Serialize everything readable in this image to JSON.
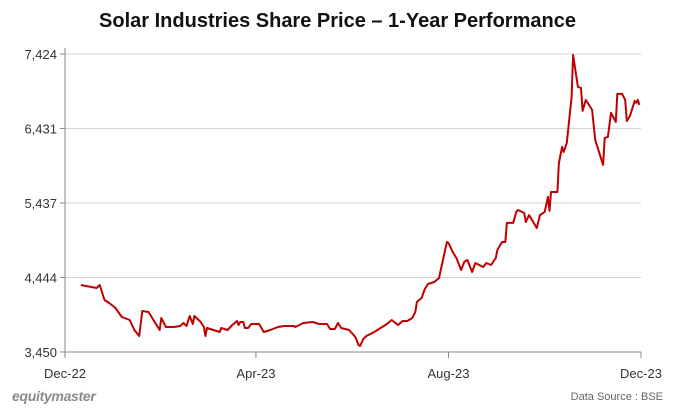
{
  "chart_data": {
    "type": "line",
    "title": "Solar Industries Share Price – 1-Year Performance",
    "xlabel": "",
    "ylabel": "",
    "ylim": [
      3450,
      7424
    ],
    "yticks": [
      "3,450",
      "4,444",
      "5,437",
      "6,431",
      "7,424"
    ],
    "ytick_values": [
      3450,
      4444,
      5437,
      6431,
      7424
    ],
    "xlim": [
      "2022-12-01",
      "2023-12-01"
    ],
    "xticks": [
      "Dec-22",
      "Apr-23",
      "Aug-23",
      "Dec-23"
    ],
    "xtick_dates": [
      "2022-12-01",
      "2023-04-01",
      "2023-08-01",
      "2023-12-01"
    ],
    "grid": "horizontal",
    "line_color": "#c00000",
    "series": [
      {
        "x": [
          "2022-12-11",
          "2022-12-21",
          "2022-12-23",
          "2022-12-26",
          "2022-12-29",
          "2023-01-02",
          "2023-01-06",
          "2023-01-11",
          "2023-01-14",
          "2023-01-17",
          "2023-01-19",
          "2023-01-23",
          "2023-01-26",
          "2023-01-30",
          "2023-01-31",
          "2023-02-03",
          "2023-02-08",
          "2023-02-12",
          "2023-02-14",
          "2023-02-16",
          "2023-02-18",
          "2023-02-20",
          "2023-02-21",
          "2023-02-25",
          "2023-02-27",
          "2023-02-28",
          "2023-03-01",
          "2023-03-05",
          "2023-03-09",
          "2023-03-10",
          "2023-03-14",
          "2023-03-17",
          "2023-03-20",
          "2023-03-21",
          "2023-03-22",
          "2023-03-24",
          "2023-03-25",
          "2023-03-27",
          "2023-03-29",
          "2023-04-03",
          "2023-04-06",
          "2023-04-10",
          "2023-04-15",
          "2023-04-19",
          "2023-04-25",
          "2023-04-26",
          "2023-05-01",
          "2023-05-07",
          "2023-05-11",
          "2023-05-16",
          "2023-05-18",
          "2023-05-21",
          "2023-05-23",
          "2023-05-25",
          "2023-05-30",
          "2023-06-03",
          "2023-06-05",
          "2023-06-06",
          "2023-06-08",
          "2023-06-10",
          "2023-06-15",
          "2023-06-20",
          "2023-06-23",
          "2023-06-26",
          "2023-06-30",
          "2023-07-03",
          "2023-07-06",
          "2023-07-09",
          "2023-07-11",
          "2023-07-12",
          "2023-07-15",
          "2023-07-17",
          "2023-07-19",
          "2023-07-23",
          "2023-07-26",
          "2023-07-31",
          "2023-08-01",
          "2023-08-04",
          "2023-08-06",
          "2023-08-09",
          "2023-08-11",
          "2023-08-13",
          "2023-08-16",
          "2023-08-18",
          "2023-08-23",
          "2023-08-25",
          "2023-08-28",
          "2023-08-31",
          "2023-09-01",
          "2023-09-04",
          "2023-09-06",
          "2023-09-07",
          "2023-09-11",
          "2023-09-13",
          "2023-09-14",
          "2023-09-18",
          "2023-09-19",
          "2023-09-21",
          "2023-09-26",
          "2023-09-28",
          "2023-10-01",
          "2023-10-03",
          "2023-10-04",
          "2023-10-05",
          "2023-10-09",
          "2023-10-10",
          "2023-10-12",
          "2023-10-13",
          "2023-10-15",
          "2023-10-18",
          "2023-10-19",
          "2023-10-22",
          "2023-10-24",
          "2023-10-25",
          "2023-10-27",
          "2023-10-31",
          "2023-11-02",
          "2023-11-07",
          "2023-11-08",
          "2023-11-10",
          "2023-11-12",
          "2023-11-15",
          "2023-11-16",
          "2023-11-19",
          "2023-11-21",
          "2023-11-22",
          "2023-11-24",
          "2023-11-27",
          "2023-11-28",
          "2023-11-29",
          "2023-11-30"
        ],
        "y": [
          4344,
          4304,
          4344,
          4144,
          4104,
          4037,
          3917,
          3877,
          3743,
          3663,
          3997,
          3984,
          3877,
          3743,
          3904,
          3784,
          3784,
          3797,
          3837,
          3797,
          3930,
          3824,
          3930,
          3850,
          3784,
          3663,
          3770,
          3743,
          3717,
          3770,
          3743,
          3810,
          3864,
          3810,
          3850,
          3850,
          3770,
          3770,
          3824,
          3824,
          3717,
          3743,
          3784,
          3797,
          3797,
          3784,
          3837,
          3850,
          3824,
          3824,
          3757,
          3757,
          3837,
          3770,
          3743,
          3650,
          3543,
          3530,
          3623,
          3663,
          3717,
          3784,
          3824,
          3877,
          3810,
          3864,
          3864,
          3904,
          3984,
          4117,
          4170,
          4290,
          4357,
          4384,
          4437,
          4917,
          4904,
          4771,
          4704,
          4544,
          4651,
          4677,
          4517,
          4637,
          4584,
          4637,
          4610,
          4704,
          4811,
          4917,
          4917,
          5171,
          5171,
          5318,
          5344,
          5304,
          5184,
          5277,
          5104,
          5277,
          5318,
          5518,
          5331,
          5584,
          5584,
          5971,
          6185,
          6118,
          6238,
          6852,
          7412,
          6985,
          6972,
          6665,
          6812,
          6678,
          6278,
          5945,
          6305,
          6318,
          6638,
          6518,
          6892,
          6892,
          6812,
          6531,
          6598,
          6798,
          6772,
          6812,
          6745
        ]
      }
    ]
  },
  "footer": {
    "logo": "equitymaster",
    "source": "Data Source : BSE"
  }
}
